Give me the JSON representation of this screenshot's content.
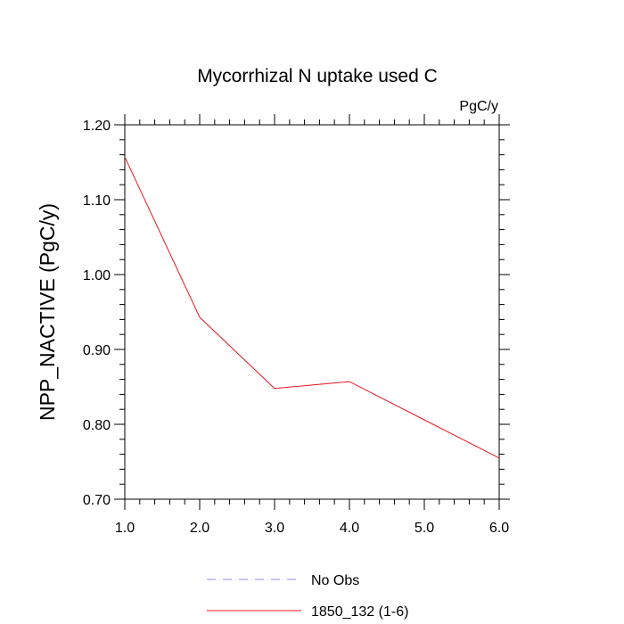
{
  "chart_data": {
    "type": "line",
    "title": "Mycorrhizal N uptake used C",
    "units_label": "PgC/y",
    "ylabel": "NPP_NACTIVE  (PgC/y)",
    "xlabel": "",
    "xlim": [
      1.0,
      6.0
    ],
    "ylim": [
      0.7,
      1.2
    ],
    "x_ticks": [
      1.0,
      2.0,
      3.0,
      4.0,
      5.0,
      6.0
    ],
    "x_tick_labels": [
      "1.0",
      "2.0",
      "3.0",
      "4.0",
      "5.0",
      "6.0"
    ],
    "y_ticks": [
      0.7,
      0.8,
      0.9,
      1.0,
      1.1,
      1.2
    ],
    "y_tick_labels": [
      "0.70",
      "0.80",
      "0.90",
      "1.00",
      "1.10",
      "1.20"
    ],
    "grid": false,
    "legend_position": "bottom",
    "series": [
      {
        "name": "1850_132 (1-6)",
        "color": "#e8141c",
        "dash": "solid",
        "x": [
          1.0,
          2.0,
          3.0,
          4.0,
          5.0,
          6.0
        ],
        "y": [
          1.157,
          0.943,
          0.848,
          0.857,
          0.806,
          0.755
        ]
      }
    ],
    "legend": [
      {
        "label": "No Obs",
        "color": "#8c8cf0",
        "dash": "dashed"
      },
      {
        "label": "1850_132 (1-6)",
        "color": "#e8141c",
        "dash": "solid"
      }
    ]
  }
}
